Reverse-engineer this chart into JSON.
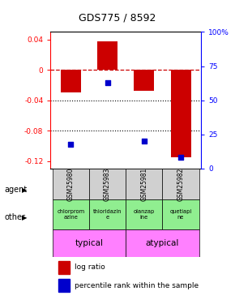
{
  "title": "GDS775 / 8592",
  "samples": [
    "GSM25980",
    "GSM25983",
    "GSM25981",
    "GSM25982"
  ],
  "log_ratios": [
    -0.03,
    0.038,
    -0.028,
    -0.115
  ],
  "percentile_ranks": [
    18,
    63,
    20,
    8
  ],
  "ylim_left": [
    -0.13,
    0.05
  ],
  "ylim_right": [
    0,
    100
  ],
  "yticks_left": [
    0.04,
    0.0,
    -0.04,
    -0.08,
    -0.12
  ],
  "yticks_left_labels": [
    "0.04",
    "0",
    "-0.04",
    "-0.08",
    "-0.12"
  ],
  "yticks_right": [
    100,
    75,
    50,
    25,
    0
  ],
  "yticks_right_labels": [
    "100%",
    "75",
    "50",
    "25",
    "0"
  ],
  "agents": [
    "chlorprom\nazine",
    "thioridazin\ne",
    "olanzap\nine",
    "quetiapi\nne"
  ],
  "agent_color": "#90ee90",
  "other_groups": [
    [
      "typical",
      2
    ],
    [
      "atypical",
      2
    ]
  ],
  "other_color": "#ff80ff",
  "bar_color": "#cc0000",
  "dot_color": "#0000cc",
  "bar_width": 0.55,
  "zero_line_color": "#cc0000",
  "grid_color": "#000000",
  "label_agent": "agent",
  "label_other": "other",
  "background_color": "#ffffff",
  "gsm_bg": "#d0d0d0"
}
